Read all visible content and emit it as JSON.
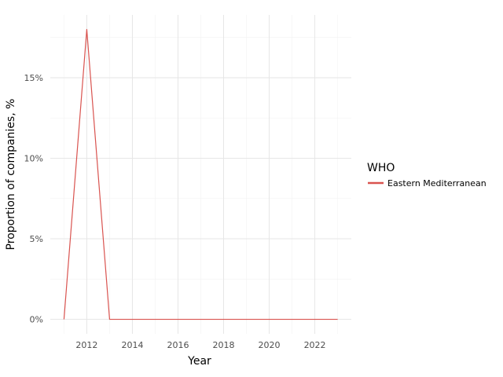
{
  "chart_data": {
    "type": "line",
    "xlabel": "Year",
    "ylabel": "Proportion of companies, %",
    "x": [
      2011,
      2012,
      2013,
      2014,
      2015,
      2016,
      2017,
      2018,
      2019,
      2020,
      2021,
      2022,
      2023
    ],
    "series": [
      {
        "name": "Eastern Mediterranean",
        "color": "#d9534f",
        "values": [
          0,
          18,
          0,
          0,
          0,
          0,
          0,
          0,
          0,
          0,
          0,
          0,
          0
        ]
      }
    ],
    "x_ticks": [
      2012,
      2014,
      2016,
      2018,
      2020,
      2022
    ],
    "x_tick_labels": [
      "2012",
      "2014",
      "2016",
      "2018",
      "2020",
      "2022"
    ],
    "y_ticks": [
      0,
      5,
      10,
      15
    ],
    "y_tick_labels": [
      "0%",
      "5%",
      "10%",
      "15%"
    ],
    "xlim": [
      2010.4,
      2023.6
    ],
    "ylim": [
      -0.9,
      18.9
    ],
    "grid": true,
    "legend": {
      "title": "WHO",
      "position": "right"
    }
  }
}
